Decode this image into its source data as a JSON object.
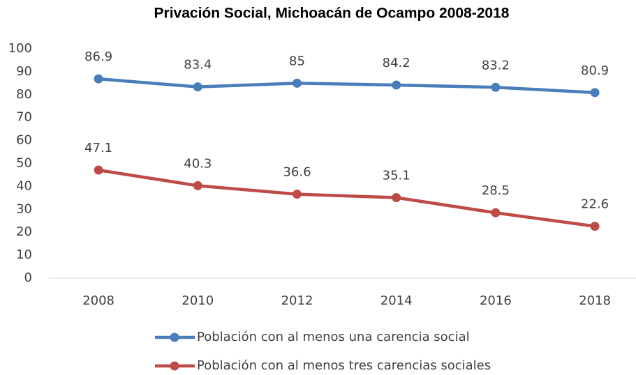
{
  "chart_data": {
    "type": "line",
    "title": "Privación Social, Michoacán de Ocampo 2008-2018",
    "categories": [
      "2008",
      "2010",
      "2012",
      "2014",
      "2016",
      "2018"
    ],
    "series": [
      {
        "name": "Población con al menos una carencia social",
        "color": "#4a7ebb",
        "values": [
          86.9,
          83.4,
          85,
          84.2,
          83.2,
          80.9
        ]
      },
      {
        "name": "Población con al menos tres carencias sociales",
        "color": "#be4b48",
        "values": [
          47.1,
          40.3,
          36.6,
          35.1,
          28.5,
          22.6
        ]
      }
    ],
    "ylim": [
      0,
      100
    ],
    "yticks": [
      0,
      10,
      20,
      30,
      40,
      50,
      60,
      70,
      80,
      90,
      100
    ],
    "grid": false,
    "legend": "bottom"
  }
}
